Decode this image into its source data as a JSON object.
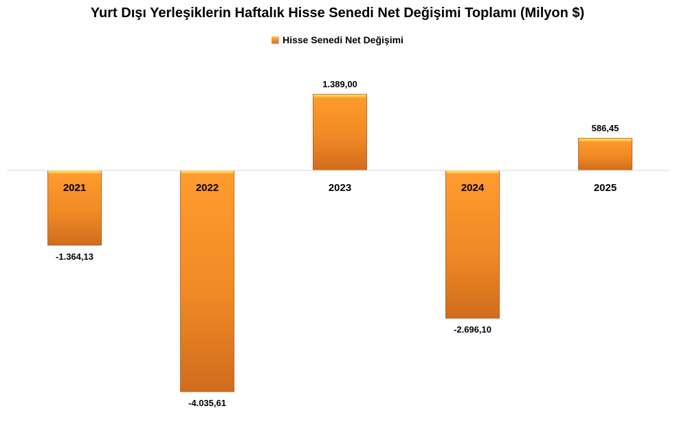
{
  "chart_data": {
    "type": "bar",
    "title": "Yurt Dışı Yerleşiklerin Haftalık Hisse Senedi Net Değişimi Toplamı (Milyon $)",
    "categories": [
      "2021",
      "2022",
      "2023",
      "2024",
      "2025"
    ],
    "series": [
      {
        "name": "Hisse Senedi Net Değişimi",
        "values": [
          -1364.13,
          -4035.61,
          1389.0,
          -2696.1,
          586.45
        ],
        "labels": [
          "-1.364,13",
          "-4.035,61",
          "1.389,00",
          "-2.696,10",
          "586,45"
        ]
      }
    ],
    "xlabel": "",
    "ylabel": "",
    "ylim": [
      -4500,
      1500
    ],
    "legend_position": "top",
    "grid": false,
    "colors": {
      "bar_top": "#ffd24a",
      "bar_mid": "#ff9a2a",
      "bar_bottom": "#d9711f",
      "axis": "#d9d9d9"
    }
  }
}
